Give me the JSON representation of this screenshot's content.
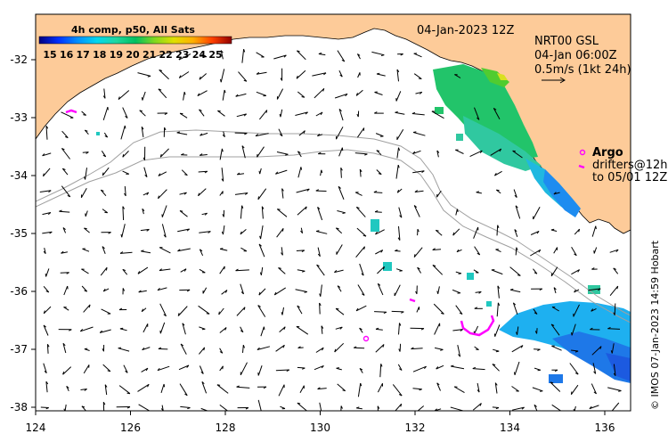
{
  "header": {
    "datetime": "04-Jan-2023 12Z",
    "legend_title": "4h comp, p50, All Sats"
  },
  "colorbar": {
    "ticks": [
      "15",
      "16",
      "17",
      "18",
      "19",
      "20",
      "21",
      "22",
      "23",
      "24",
      "25"
    ],
    "colors": [
      "#00007f",
      "#0000c8",
      "#0030ff",
      "#0080ff",
      "#00c8ff",
      "#20f0e0",
      "#30d890",
      "#00c060",
      "#60d020",
      "#c8e000",
      "#ffd800",
      "#ffa000",
      "#ff6000",
      "#e01000",
      "#900000"
    ]
  },
  "current_info": {
    "line1": "NRT00 GSL",
    "line2": "04-Jan 06:00Z",
    "line3": "0.5m/s (1kt 24h)"
  },
  "legend_drifters": {
    "argo": "Argo",
    "drifters_line1": "drifters@12h",
    "drifters_line2": "to 05/01 12Z"
  },
  "axes": {
    "x_ticks": [
      "124",
      "126",
      "128",
      "130",
      "132",
      "134",
      "136"
    ],
    "y_ticks": [
      "-32",
      "-33",
      "-34",
      "-35",
      "-36",
      "-37",
      "-38"
    ]
  },
  "copyright": "© IMOS 07-Jan-2023 14:59 Hobart",
  "colors": {
    "land": "#fdcb99",
    "ocean": "#ffffff",
    "contour": "#a0a0a0",
    "drifter": "#ff00ff"
  }
}
